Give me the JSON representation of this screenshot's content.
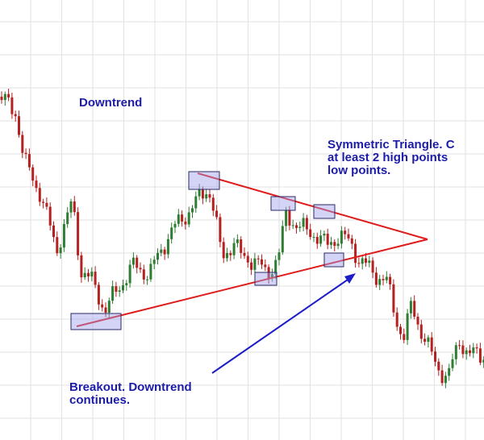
{
  "annotations": {
    "downtrend": "Downtrend",
    "triangle": [
      "Symmetric Triangle. C",
      "at least 2 high points",
      "low points."
    ],
    "breakout": [
      "Breakout. Downtrend",
      "continues."
    ]
  }
}
